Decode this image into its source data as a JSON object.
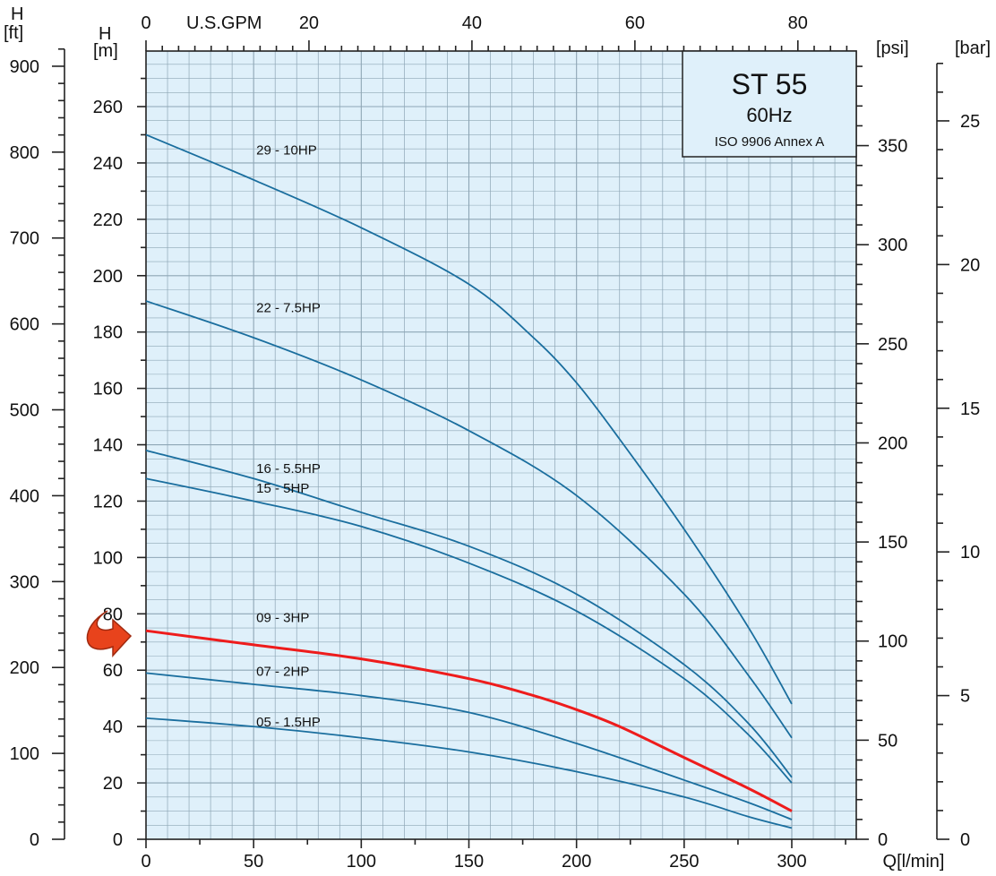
{
  "chart_data": {
    "type": "line",
    "title": "ST 55",
    "subtitle": "60Hz",
    "standard": "ISO 9906 Annex A",
    "x_axis": {
      "label": "Q[l/min]",
      "range": [
        0,
        330
      ],
      "ticks": [
        0,
        50,
        100,
        150,
        200,
        250,
        300
      ],
      "tick_labels": [
        "0",
        "50",
        "100",
        "150",
        "200",
        "250",
        "300"
      ]
    },
    "x_axis_top": {
      "label": "U.S.GPM",
      "ticks": [
        0,
        20,
        40,
        60,
        80
      ],
      "tick_labels": [
        "0",
        "20",
        "40",
        "60",
        "80"
      ]
    },
    "y_axis_left": {
      "label_line1": "H",
      "label_line2": "[m]",
      "range": [
        0,
        280
      ],
      "ticks": [
        0,
        20,
        40,
        60,
        80,
        100,
        120,
        140,
        160,
        180,
        200,
        220,
        240,
        260
      ],
      "tick_labels": [
        "0",
        "20",
        "40",
        "60",
        "80",
        "100",
        "120",
        "140",
        "160",
        "180",
        "200",
        "220",
        "240",
        "260"
      ]
    },
    "y_axis_ft": {
      "label_line1": "H",
      "label_line2": "[ft]",
      "ticks": [
        0,
        100,
        200,
        300,
        400,
        500,
        600,
        700,
        800,
        900
      ],
      "tick_labels": [
        "0",
        "100",
        "200",
        "300",
        "400",
        "500",
        "600",
        "700",
        "800",
        "900"
      ]
    },
    "y_axis_psi": {
      "label": "[psi]",
      "ticks": [
        0,
        50,
        100,
        150,
        200,
        250,
        300,
        350
      ],
      "tick_labels": [
        "0",
        "50",
        "100",
        "150",
        "200",
        "250",
        "300",
        "350"
      ]
    },
    "y_axis_bar": {
      "label": "[bar]",
      "ticks": [
        0,
        5,
        10,
        15,
        20,
        25
      ],
      "tick_labels": [
        "0",
        "5",
        "10",
        "15",
        "20",
        "25"
      ]
    },
    "grid": true,
    "colors": {
      "plot_background": "#dff0fa",
      "grid": "#8ea6b5",
      "curve": "#1a6e9e",
      "highlight_curve": "#ee1c1c",
      "arrow": "#e8431c",
      "arrow_outline": "#a02a10",
      "axis": "#222222"
    },
    "series": [
      {
        "name": "29 - 10HP",
        "highlight": false,
        "label_at": [
          50,
          243
        ],
        "points": [
          [
            0,
            250
          ],
          [
            50,
            234
          ],
          [
            100,
            217
          ],
          [
            150,
            197
          ],
          [
            180,
            178
          ],
          [
            200,
            162
          ],
          [
            220,
            142
          ],
          [
            250,
            110
          ],
          [
            280,
            75
          ],
          [
            300,
            48
          ]
        ]
      },
      {
        "name": "22 - 7.5HP",
        "highlight": false,
        "label_at": [
          50,
          187
        ],
        "points": [
          [
            0,
            191
          ],
          [
            50,
            178
          ],
          [
            100,
            163
          ],
          [
            150,
            145
          ],
          [
            200,
            122
          ],
          [
            250,
            87
          ],
          [
            280,
            58
          ],
          [
            300,
            36
          ]
        ]
      },
      {
        "name": "16 - 5.5HP",
        "highlight": false,
        "label_at": [
          50,
          130
        ],
        "points": [
          [
            0,
            138
          ],
          [
            50,
            128
          ],
          [
            100,
            116
          ],
          [
            150,
            104
          ],
          [
            200,
            87
          ],
          [
            250,
            62
          ],
          [
            280,
            41
          ],
          [
            300,
            22
          ]
        ]
      },
      {
        "name": "15 - 5HP",
        "highlight": false,
        "label_at": [
          50,
          123
        ],
        "points": [
          [
            0,
            128
          ],
          [
            50,
            120
          ],
          [
            100,
            111
          ],
          [
            150,
            98
          ],
          [
            200,
            81
          ],
          [
            250,
            57
          ],
          [
            280,
            37
          ],
          [
            300,
            20
          ]
        ]
      },
      {
        "name": "09 - 3HP",
        "highlight": true,
        "label_at": [
          50,
          77
        ],
        "points": [
          [
            0,
            74
          ],
          [
            50,
            69
          ],
          [
            100,
            64
          ],
          [
            150,
            57
          ],
          [
            180,
            51
          ],
          [
            200,
            46
          ],
          [
            220,
            40
          ],
          [
            250,
            29
          ],
          [
            280,
            18
          ],
          [
            300,
            10
          ]
        ]
      },
      {
        "name": "07 - 2HP",
        "highlight": false,
        "label_at": [
          50,
          58
        ],
        "points": [
          [
            0,
            59
          ],
          [
            50,
            55
          ],
          [
            100,
            51
          ],
          [
            150,
            45
          ],
          [
            200,
            34
          ],
          [
            250,
            21
          ],
          [
            280,
            13
          ],
          [
            300,
            7
          ]
        ]
      },
      {
        "name": "05 - 1.5HP",
        "highlight": false,
        "label_at": [
          50,
          40
        ],
        "points": [
          [
            0,
            43
          ],
          [
            50,
            40
          ],
          [
            100,
            36
          ],
          [
            150,
            31
          ],
          [
            200,
            24
          ],
          [
            250,
            15
          ],
          [
            280,
            8
          ],
          [
            300,
            4
          ]
        ]
      }
    ]
  }
}
